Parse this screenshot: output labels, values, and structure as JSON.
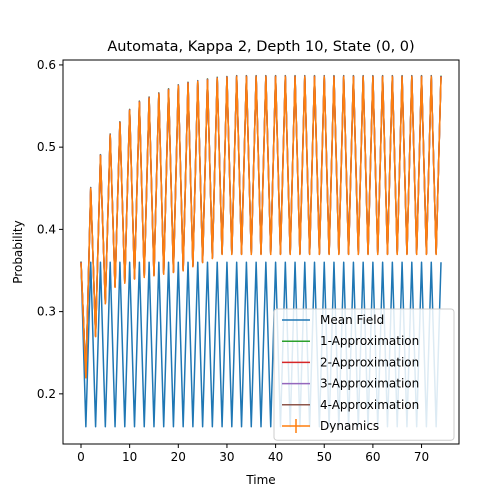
{
  "chart_data": {
    "type": "line",
    "title": "Automata, Kappa 2, Depth 10, State (0, 0)",
    "xlabel": "Time",
    "ylabel": "Probability",
    "xlim": [
      -3.7,
      77.7
    ],
    "ylim": [
      0.139,
      0.606
    ],
    "xticks": [
      0,
      10,
      20,
      30,
      40,
      50,
      60,
      70
    ],
    "yticks": [
      0.2,
      0.3,
      0.4,
      0.5,
      0.6
    ],
    "grid": false,
    "legend_position": "lower-right",
    "t_max": 74,
    "series": [
      {
        "name": "Mean Field",
        "color": "#1f77b4",
        "model": "Period-2 oscillation between 0.16 and 0.36 starting at 0.36",
        "high": 0.36,
        "low": 0.16,
        "period": 2
      },
      {
        "name": "1-Approximation",
        "color": "#2ca02c",
        "model": "Saturating period-2 oscillation; peaks rise from 0.36 toward 0.586",
        "peaks": [
          0.36,
          0.45,
          0.49,
          0.515,
          0.53,
          0.545,
          0.555,
          0.56,
          0.565,
          0.57,
          0.575,
          0.578,
          0.58,
          0.582,
          0.584,
          0.585,
          0.586
        ],
        "troughs": [
          0.22,
          0.27,
          0.31,
          0.33,
          0.335,
          0.34,
          0.342,
          0.344,
          0.346,
          0.348,
          0.35,
          0.355,
          0.36,
          0.365,
          0.37
        ]
      },
      {
        "name": "2-Approximation",
        "color": "#d62728"
      },
      {
        "name": "3-Approximation",
        "color": "#9467bd"
      },
      {
        "name": "4-Approximation",
        "color": "#8c564b"
      },
      {
        "name": "Dynamics",
        "color": "#ff7f0e"
      }
    ]
  }
}
